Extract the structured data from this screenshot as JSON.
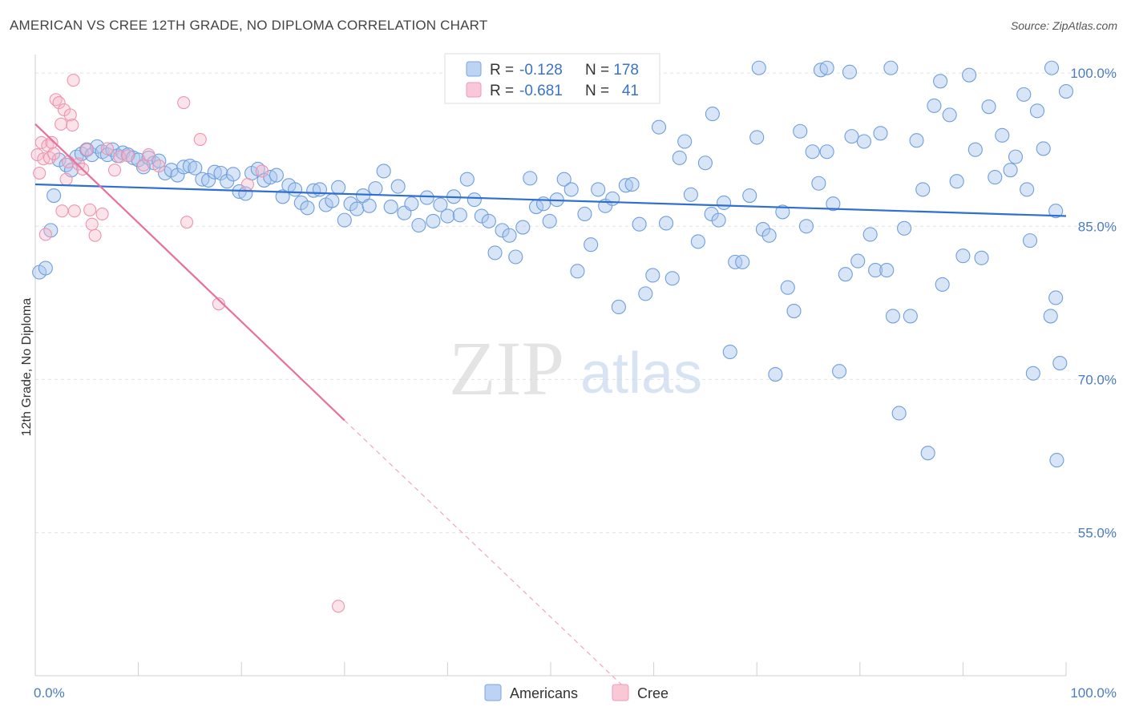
{
  "title": "AMERICAN VS CREE 12TH GRADE, NO DIPLOMA CORRELATION CHART",
  "source": "Source: ZipAtlas.com",
  "watermark": {
    "zip": "ZIP",
    "atlas": "atlas"
  },
  "legend": {
    "r_label": "R =",
    "n_label": "N =",
    "rows": [
      {
        "r": "-0.128",
        "n": "178",
        "color": "#7aa6e0"
      },
      {
        "r": "-0.681",
        "n": "41",
        "color": "#f09ab5"
      }
    ]
  },
  "colors": {
    "americans": "#7aa6e0",
    "americans_line": "#2f6fd0",
    "cree": "#f09ab5",
    "cree_line": "#e8709a",
    "tick_text": "#4a7cc2"
  },
  "chart_data": {
    "type": "scatter",
    "title": "AMERICAN VS CREE 12TH GRADE, NO DIPLOMA CORRELATION CHART",
    "xlabel": "",
    "ylabel": "12th Grade, No Diploma",
    "xlim": [
      0,
      100
    ],
    "ylim": [
      41,
      101.5
    ],
    "x_tick_labels": [
      "0.0%",
      "100.0%"
    ],
    "y_ticks": [
      100,
      85,
      70,
      55
    ],
    "y_tick_labels": [
      "100.0%",
      "85.0%",
      "70.0%",
      "55.0%"
    ],
    "grid": true,
    "legend_position": "top-center",
    "series": [
      {
        "name": "Americans",
        "trend": {
          "x": [
            0,
            100
          ],
          "y": [
            89.1,
            86.0
          ]
        },
        "points": [
          [
            0.4,
            80.5
          ],
          [
            1.0,
            80.9
          ],
          [
            1.5,
            84.6
          ],
          [
            1.8,
            88.0
          ],
          [
            2.3,
            91.5
          ],
          [
            3.0,
            91.0
          ],
          [
            3.5,
            90.5
          ],
          [
            4.0,
            91.8
          ],
          [
            4.5,
            92.1
          ],
          [
            5.0,
            92.5
          ],
          [
            5.5,
            92.0
          ],
          [
            6.0,
            92.8
          ],
          [
            6.5,
            92.3
          ],
          [
            7.0,
            92.0
          ],
          [
            7.5,
            92.5
          ],
          [
            8.0,
            91.9
          ],
          [
            8.5,
            92.2
          ],
          [
            9.0,
            92.0
          ],
          [
            9.5,
            91.7
          ],
          [
            10.0,
            91.5
          ],
          [
            10.5,
            90.8
          ],
          [
            11.0,
            91.7
          ],
          [
            11.5,
            91.2
          ],
          [
            12.0,
            91.4
          ],
          [
            12.6,
            90.2
          ],
          [
            13.2,
            90.5
          ],
          [
            13.8,
            90.0
          ],
          [
            14.4,
            90.8
          ],
          [
            15.0,
            90.9
          ],
          [
            15.5,
            90.7
          ],
          [
            16.2,
            89.6
          ],
          [
            16.8,
            89.5
          ],
          [
            17.4,
            90.3
          ],
          [
            18.0,
            90.2
          ],
          [
            18.6,
            89.4
          ],
          [
            19.2,
            90.1
          ],
          [
            19.8,
            88.4
          ],
          [
            20.4,
            88.2
          ],
          [
            21.0,
            90.2
          ],
          [
            21.6,
            90.6
          ],
          [
            22.2,
            89.5
          ],
          [
            22.8,
            89.8
          ],
          [
            23.4,
            90.0
          ],
          [
            24.0,
            87.9
          ],
          [
            24.6,
            89.0
          ],
          [
            25.2,
            88.6
          ],
          [
            25.8,
            87.3
          ],
          [
            26.4,
            86.8
          ],
          [
            27.0,
            88.5
          ],
          [
            27.6,
            88.6
          ],
          [
            28.2,
            87.1
          ],
          [
            28.8,
            87.5
          ],
          [
            29.4,
            88.8
          ],
          [
            30.0,
            85.6
          ],
          [
            30.6,
            87.2
          ],
          [
            31.2,
            86.7
          ],
          [
            31.8,
            88.0
          ],
          [
            32.4,
            87.0
          ],
          [
            33.0,
            88.7
          ],
          [
            33.8,
            90.4
          ],
          [
            34.5,
            86.9
          ],
          [
            35.2,
            88.9
          ],
          [
            35.8,
            86.3
          ],
          [
            36.5,
            87.2
          ],
          [
            37.2,
            85.1
          ],
          [
            38.0,
            87.8
          ],
          [
            38.6,
            85.5
          ],
          [
            39.3,
            87.1
          ],
          [
            40.0,
            86.0
          ],
          [
            40.6,
            87.9
          ],
          [
            41.2,
            86.1
          ],
          [
            41.9,
            89.6
          ],
          [
            42.6,
            87.6
          ],
          [
            43.3,
            86.0
          ],
          [
            44.0,
            85.5
          ],
          [
            44.6,
            82.4
          ],
          [
            45.3,
            84.6
          ],
          [
            46.0,
            84.1
          ],
          [
            46.6,
            82.0
          ],
          [
            47.3,
            84.9
          ],
          [
            48.0,
            89.7
          ],
          [
            48.6,
            86.9
          ],
          [
            49.3,
            87.2
          ],
          [
            49.9,
            85.5
          ],
          [
            50.6,
            87.6
          ],
          [
            51.3,
            89.6
          ],
          [
            52.0,
            88.6
          ],
          [
            52.6,
            80.6
          ],
          [
            53.3,
            86.2
          ],
          [
            53.9,
            83.2
          ],
          [
            54.6,
            88.6
          ],
          [
            55.3,
            87.0
          ],
          [
            56.0,
            87.7
          ],
          [
            56.6,
            77.1
          ],
          [
            57.3,
            89.0
          ],
          [
            57.9,
            89.1
          ],
          [
            58.6,
            85.2
          ],
          [
            59.2,
            78.4
          ],
          [
            59.9,
            80.2
          ],
          [
            60.5,
            94.7
          ],
          [
            61.2,
            85.3
          ],
          [
            61.8,
            79.9
          ],
          [
            62.5,
            91.7
          ],
          [
            63.0,
            93.3
          ],
          [
            63.6,
            88.1
          ],
          [
            64.3,
            83.5
          ],
          [
            65.0,
            91.2
          ],
          [
            65.6,
            86.2
          ],
          [
            66.3,
            85.6
          ],
          [
            66.8,
            87.3
          ],
          [
            67.4,
            72.7
          ],
          [
            67.9,
            81.5
          ],
          [
            68.6,
            81.5
          ],
          [
            69.3,
            88.0
          ],
          [
            70.0,
            93.7
          ],
          [
            70.6,
            84.7
          ],
          [
            71.2,
            84.1
          ],
          [
            71.8,
            70.5
          ],
          [
            72.5,
            86.4
          ],
          [
            73.0,
            79.0
          ],
          [
            73.6,
            76.7
          ],
          [
            74.2,
            94.3
          ],
          [
            74.8,
            85.0
          ],
          [
            75.4,
            92.3
          ],
          [
            76.0,
            89.2
          ],
          [
            76.8,
            92.3
          ],
          [
            77.4,
            87.2
          ],
          [
            78.0,
            70.8
          ],
          [
            78.6,
            80.3
          ],
          [
            79.2,
            93.8
          ],
          [
            79.8,
            81.6
          ],
          [
            80.4,
            93.3
          ],
          [
            81.0,
            84.2
          ],
          [
            81.5,
            80.7
          ],
          [
            82.0,
            94.1
          ],
          [
            82.6,
            80.7
          ],
          [
            83.2,
            76.2
          ],
          [
            83.8,
            66.7
          ],
          [
            84.3,
            84.8
          ],
          [
            84.9,
            76.2
          ],
          [
            85.5,
            93.4
          ],
          [
            86.1,
            88.6
          ],
          [
            86.6,
            62.8
          ],
          [
            87.2,
            96.8
          ],
          [
            88.0,
            79.3
          ],
          [
            88.7,
            95.9
          ],
          [
            89.4,
            89.4
          ],
          [
            90.0,
            82.1
          ],
          [
            90.6,
            99.8
          ],
          [
            91.2,
            92.5
          ],
          [
            91.8,
            81.9
          ],
          [
            92.5,
            96.7
          ],
          [
            93.1,
            89.8
          ],
          [
            93.8,
            93.9
          ],
          [
            94.6,
            90.5
          ],
          [
            95.1,
            91.8
          ],
          [
            95.9,
            97.9
          ],
          [
            96.5,
            83.6
          ],
          [
            97.2,
            96.3
          ],
          [
            97.8,
            92.6
          ],
          [
            98.5,
            76.2
          ],
          [
            99.0,
            86.5
          ],
          [
            100.0,
            98.2
          ],
          [
            65.7,
            96.0
          ],
          [
            70.2,
            100.5
          ],
          [
            76.2,
            100.3
          ],
          [
            76.8,
            100.5
          ],
          [
            79.0,
            100.1
          ],
          [
            83.0,
            100.5
          ],
          [
            87.8,
            99.2
          ],
          [
            98.6,
            100.5
          ],
          [
            96.2,
            88.6
          ],
          [
            99.4,
            71.6
          ],
          [
            99.1,
            62.1
          ],
          [
            99.0,
            78.0
          ],
          [
            96.8,
            70.6
          ]
        ]
      },
      {
        "name": "Cree",
        "trend": {
          "x": [
            0,
            30
          ],
          "y": [
            95.0,
            66.0
          ]
        },
        "trend_dashed": {
          "x": [
            30,
            57
          ],
          "y": [
            66.0,
            40.0
          ]
        },
        "points": [
          [
            0.2,
            92.0
          ],
          [
            0.4,
            90.2
          ],
          [
            0.6,
            93.2
          ],
          [
            0.8,
            91.6
          ],
          [
            1.0,
            84.2
          ],
          [
            1.2,
            92.9
          ],
          [
            1.4,
            91.7
          ],
          [
            1.6,
            93.2
          ],
          [
            1.8,
            92.1
          ],
          [
            2.0,
            97.4
          ],
          [
            2.3,
            97.1
          ],
          [
            2.5,
            95.0
          ],
          [
            2.6,
            86.5
          ],
          [
            2.8,
            96.4
          ],
          [
            3.0,
            89.6
          ],
          [
            3.2,
            91.3
          ],
          [
            3.4,
            95.9
          ],
          [
            3.6,
            94.9
          ],
          [
            3.7,
            99.3
          ],
          [
            3.8,
            86.5
          ],
          [
            4.2,
            91.1
          ],
          [
            4.6,
            90.6
          ],
          [
            5.0,
            92.5
          ],
          [
            5.3,
            86.6
          ],
          [
            5.5,
            85.2
          ],
          [
            5.8,
            84.1
          ],
          [
            6.5,
            86.2
          ],
          [
            7.0,
            92.6
          ],
          [
            7.7,
            90.5
          ],
          [
            8.2,
            91.8
          ],
          [
            9.0,
            91.9
          ],
          [
            10.5,
            91.0
          ],
          [
            11.0,
            92.0
          ],
          [
            12.0,
            90.9
          ],
          [
            14.4,
            97.1
          ],
          [
            14.7,
            85.4
          ],
          [
            16.0,
            93.5
          ],
          [
            17.8,
            77.4
          ],
          [
            20.6,
            89.1
          ],
          [
            22.0,
            90.4
          ],
          [
            29.4,
            47.8
          ]
        ]
      }
    ]
  }
}
